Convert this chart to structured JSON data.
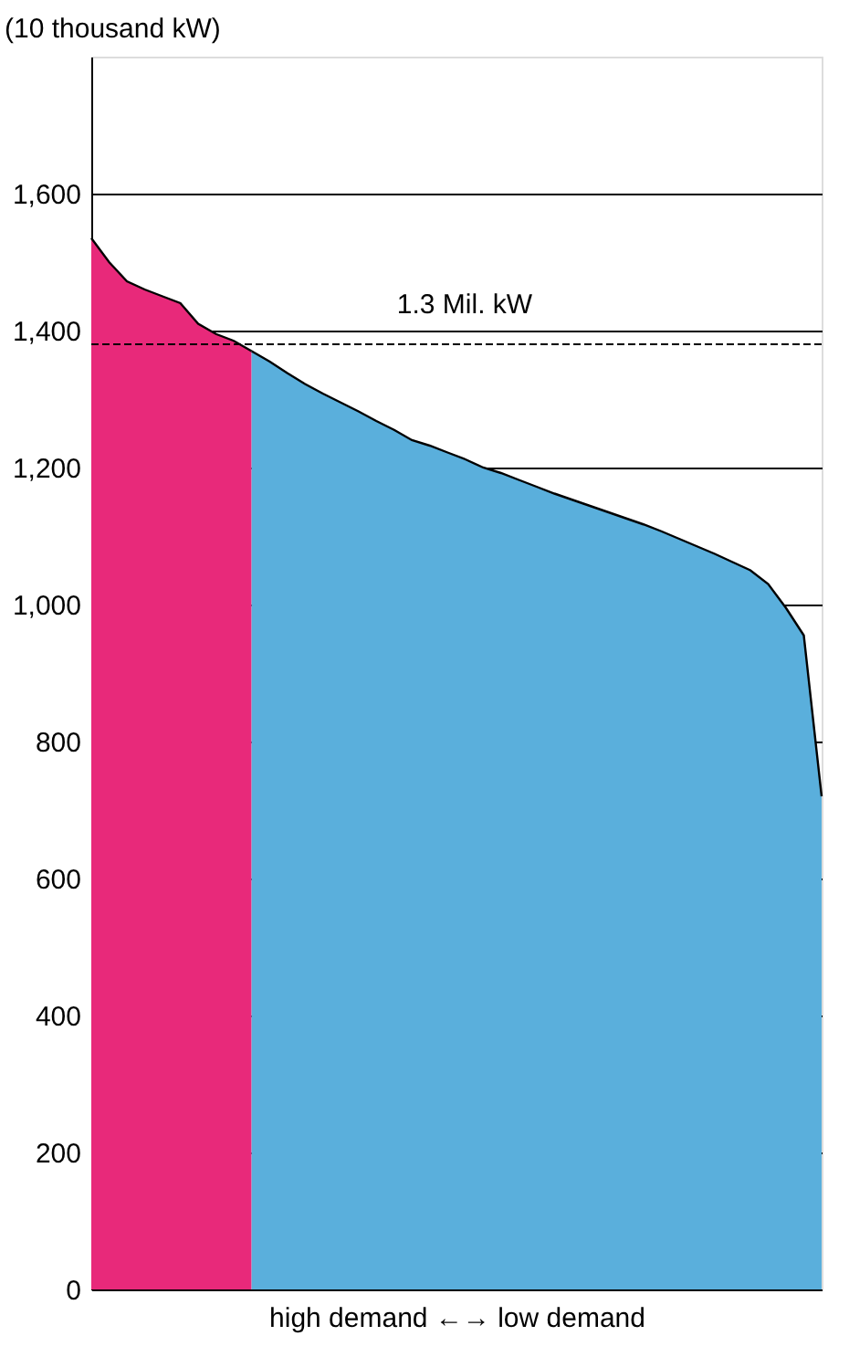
{
  "chart_data": {
    "type": "area",
    "ylabel": "(10 thousand kW)",
    "xlabel": "high demand ←→ low demand",
    "categories": [
      null,
      null,
      null,
      null,
      null,
      null,
      null,
      null,
      null,
      null,
      null,
      null,
      null,
      null,
      null,
      null,
      null,
      null,
      null,
      null,
      null,
      null,
      null,
      null,
      null,
      null,
      null,
      null,
      null,
      null,
      null,
      null,
      null,
      null,
      null,
      null,
      null,
      null,
      null,
      null,
      null,
      null
    ],
    "series": [
      {
        "color": "#e8297a",
        "values": [
          1535,
          1500,
          1472,
          1460,
          1450,
          1440,
          1410,
          1395,
          1385,
          1370,
          null,
          null,
          null,
          null,
          null,
          null,
          null,
          null,
          null,
          null,
          null,
          null,
          null,
          null,
          null,
          null,
          null,
          null,
          null,
          null,
          null,
          null,
          null,
          null,
          null,
          null,
          null,
          null,
          null,
          null,
          null,
          null
        ]
      },
      {
        "color": "#5aafdc",
        "values": [
          null,
          null,
          null,
          null,
          null,
          null,
          null,
          null,
          null,
          1370,
          1355,
          1338,
          1322,
          1308,
          1295,
          1282,
          1268,
          1255,
          1240,
          1232,
          1222,
          1212,
          1200,
          1192,
          1182,
          1172,
          1162,
          1153,
          1144,
          1135,
          1126,
          1117,
          1107,
          1096,
          1085,
          1074,
          1062,
          1050,
          1030,
          995,
          955,
          720
        ]
      }
    ],
    "ylim": [
      0,
      1800
    ],
    "yticks": [
      {
        "value": 0,
        "label": "0"
      },
      {
        "value": 200,
        "label": "200"
      },
      {
        "value": 400,
        "label": "400"
      },
      {
        "value": 600,
        "label": "600"
      },
      {
        "value": 800,
        "label": "800"
      },
      {
        "value": 1000,
        "label": "1,000"
      },
      {
        "value": 1200,
        "label": "1,200"
      },
      {
        "value": 1400,
        "label": "1,400"
      },
      {
        "value": 1600,
        "label": "1,600"
      }
    ],
    "grid": "y",
    "tick_labels": "y",
    "ref_lines": [
      {
        "axis": "y",
        "value": 1380,
        "label": "1.3 Mil. kW",
        "color": "#000000",
        "line_style": "dashed"
      }
    ]
  }
}
